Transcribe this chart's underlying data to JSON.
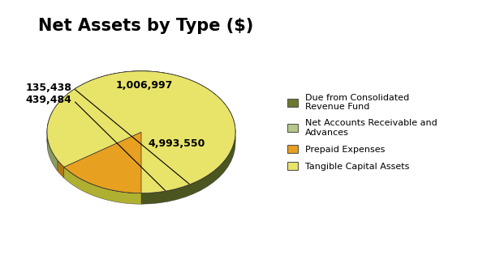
{
  "title": "Net Assets by Type ($)",
  "values": [
    4993550,
    439484,
    135438,
    1006997
  ],
  "colors": [
    "#6b7a2e",
    "#b5c98a",
    "#e8a020",
    "#e8e46a"
  ],
  "shadow_colors": [
    "#4a5520",
    "#8a9a60",
    "#b07810",
    "#b0b030"
  ],
  "legend_labels": [
    "Due from Consolidated\nRevenue Fund",
    "Net Accounts Receivable and\nAdvances",
    "Prepaid Expenses",
    "Tangible Capital Assets"
  ],
  "value_labels": [
    "4,993,550",
    "439,484",
    "135,438",
    "1,006,997"
  ],
  "title_fontsize": 15,
  "background_color": "#ffffff",
  "startangle": 90,
  "depth": 0.12
}
